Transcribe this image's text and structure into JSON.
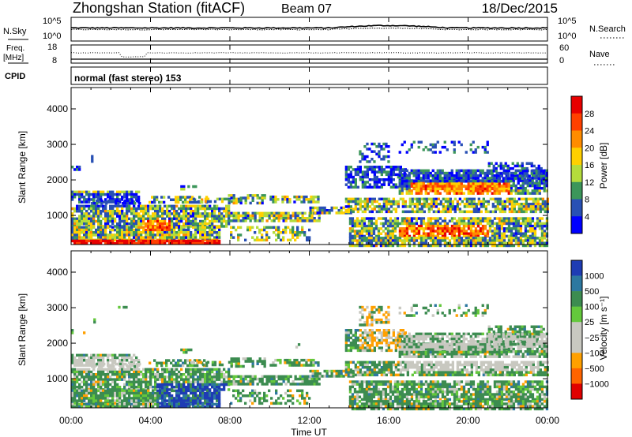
{
  "header": {
    "station": "Zhongshan Station (fitACF)",
    "beam": "Beam 07",
    "date": "18/Dec/2015"
  },
  "status_rows": {
    "nsky_label": "N.Sky",
    "nsearch_label": "N.Search",
    "freq_label_1": "Freq.",
    "freq_label_2": "[MHz]",
    "nave_label": "Nave",
    "cpid_label": "CPID",
    "cpid_value": "normal (fast stereo) 153",
    "noise_ticks_left": [
      "10^5",
      "10^0"
    ],
    "noise_ticks_right": [
      "10^5",
      "10^0"
    ],
    "freq_ticks": [
      "18",
      "8"
    ],
    "nave_ticks": [
      "60",
      "0"
    ]
  },
  "chart_data": [
    {
      "type": "heatmap",
      "name": "power",
      "ylabel": "Slant Range [km]",
      "yticks": [
        1000,
        2000,
        3000,
        4000
      ],
      "ylim": [
        180,
        4600
      ],
      "xlim": [
        0,
        24
      ],
      "colorbar": {
        "label": "Power [dB]",
        "ticks": [
          "28",
          "24",
          "20",
          "16",
          "12",
          "8",
          "4"
        ],
        "colors": [
          "#e80000",
          "#ff4000",
          "#ff8c00",
          "#ffd000",
          "#b4dc3c",
          "#3c965a",
          "#2850b4",
          "#0000ff"
        ]
      }
    },
    {
      "type": "heatmap",
      "name": "velocity",
      "ylabel": "Slant Range [km]",
      "yticks": [
        1000,
        2000,
        3000,
        4000
      ],
      "ylim": [
        180,
        4600
      ],
      "xlim": [
        0,
        24
      ],
      "colorbar": {
        "label": "Velocity [m s⁻¹]",
        "ticks": [
          "1000",
          "500",
          "100",
          "25",
          "−25",
          "−100",
          "−500",
          "−1000"
        ],
        "colors": [
          "#1e3cb4",
          "#2d78a0",
          "#3c8c50",
          "#64c83c",
          "#c8c8c0",
          "#c8c8c0",
          "#ffa000",
          "#ff6400",
          "#e00000"
        ]
      }
    }
  ],
  "x_axis": {
    "ticks": [
      "00:00",
      "04:00",
      "08:00",
      "12:00",
      "16:00",
      "20:00",
      "00:00"
    ],
    "label": "Time UT"
  }
}
